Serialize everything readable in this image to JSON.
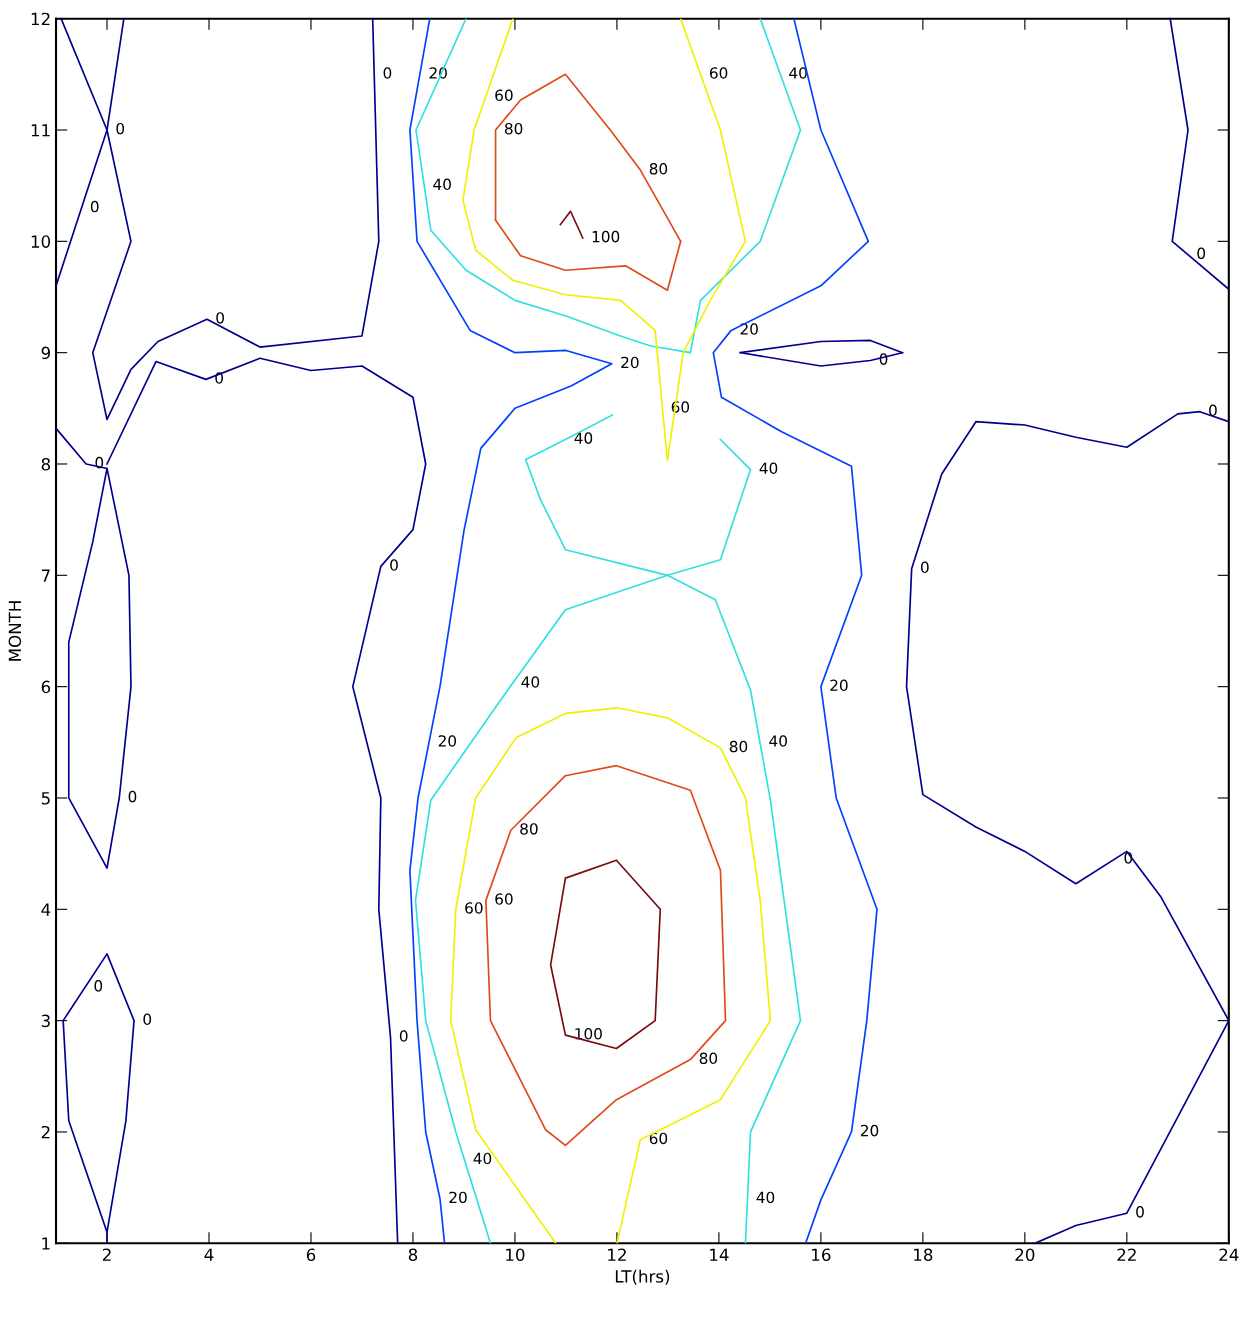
{
  "chart_data": {
    "type": "line",
    "xlabel": "LT(hrs)",
    "ylabel": "MONTH",
    "xlim": [
      1,
      24
    ],
    "ylim": [
      1,
      12
    ],
    "xticks": [
      2,
      4,
      6,
      8,
      10,
      12,
      14,
      16,
      18,
      20,
      22,
      24
    ],
    "yticks": [
      1,
      2,
      3,
      4,
      5,
      6,
      7,
      8,
      9,
      10,
      11,
      12
    ],
    "grid": false,
    "legend": false,
    "line_style": "solid",
    "series": [
      {
        "color": "#00008f",
        "x": [
          2.33,
          2,
          1
        ],
        "values": [
          12,
          11,
          9.6
        ]
      },
      {
        "color": "#00008f",
        "x": [
          1.1,
          2,
          2.47,
          1.72,
          2,
          2.47,
          3,
          3.96,
          5,
          7,
          7.33,
          7.21
        ],
        "values": [
          12,
          11,
          10,
          9,
          8.4,
          8.85,
          9.1,
          9.3,
          9.05,
          9.15,
          10,
          12
        ]
      },
      {
        "color": "#00008f",
        "x": [
          2,
          2.96,
          3.94,
          5,
          6,
          7,
          8,
          8.25,
          8,
          7.37,
          6.82,
          7.37,
          7.33,
          7.56,
          7.7
        ],
        "values": [
          8,
          8.92,
          8.76,
          8.95,
          8.84,
          8.88,
          8.6,
          8,
          7.41,
          7.08,
          6,
          5,
          4,
          2.85,
          1
        ]
      },
      {
        "color": "#00008f",
        "x": [
          1,
          1.59,
          2,
          2.43,
          2.47,
          2.24,
          2,
          1.25,
          1.25,
          1.72,
          2
        ],
        "values": [
          8.32,
          8,
          7.96,
          7,
          6,
          5,
          4.37,
          5,
          6.4,
          7.3,
          7.96
        ]
      },
      {
        "color": "#00008f",
        "x": [
          2,
          1.25,
          1.14,
          2,
          2.53,
          2.37,
          2,
          2
        ],
        "values": [
          1.1,
          2.1,
          3,
          3.6,
          3,
          2.1,
          1.1,
          1
        ]
      },
      {
        "color": "#00008f",
        "x": [
          22.85,
          23.2,
          22.89,
          24
        ],
        "values": [
          12,
          11,
          10,
          9.57
        ]
      },
      {
        "color": "#00008f",
        "x": [
          24,
          23.43,
          23,
          22,
          21,
          20,
          19.04,
          18.37,
          17.78,
          17.68,
          18,
          19.04,
          20,
          21,
          22,
          22.67,
          24
        ],
        "values": [
          8.38,
          8.47,
          8.45,
          8.15,
          8.24,
          8.35,
          8.38,
          7.91,
          7.06,
          6,
          5.03,
          4.74,
          4.52,
          4.23,
          4.52,
          4.11,
          3
        ]
      },
      {
        "color": "#00008f",
        "x": [
          24,
          22,
          21,
          20.2
        ],
        "values": [
          3,
          1.27,
          1.16,
          1
        ]
      },
      {
        "color": "#00008f",
        "x": [
          14.42,
          16,
          16.97,
          17.6
        ],
        "values": [
          9,
          9.1,
          9.11,
          9
        ]
      },
      {
        "color": "#00008f",
        "x": [
          14.42,
          16,
          16.97,
          17.6
        ],
        "values": [
          9,
          8.88,
          8.93,
          9
        ]
      },
      {
        "color": "#0040ff",
        "x": [
          8.33,
          7.94,
          8.08,
          9.12,
          10,
          11,
          11.9,
          11.1,
          10,
          9.33,
          9,
          8.53,
          8.1,
          7.94,
          8.08,
          8.25,
          8.53,
          8.62
        ],
        "values": [
          12,
          11,
          10,
          9.2,
          9,
          9.02,
          8.9,
          8.7,
          8.5,
          8.14,
          7.4,
          6,
          5,
          4.35,
          3,
          2,
          1.4,
          1
        ]
      },
      {
        "color": "#0040ff",
        "x": [
          15.47,
          16,
          16.93,
          16,
          14.24,
          13.89,
          14.05,
          15.23,
          16.6,
          16.8,
          16,
          16.3,
          17.1,
          16.9,
          16.6,
          16,
          15.7
        ],
        "values": [
          12,
          11,
          10,
          9.6,
          9.2,
          9,
          8.6,
          8.29,
          7.98,
          7,
          6,
          5,
          4,
          3,
          2,
          1.39,
          1
        ]
      },
      {
        "color": "#30e0e0",
        "x": [
          9.04,
          8.06,
          8.35,
          9.04,
          10,
          11,
          12.07,
          12.66,
          13.44,
          13.64,
          14.81,
          15.6,
          14.81
        ],
        "values": [
          12,
          11,
          10.1,
          9.74,
          9.47,
          9.33,
          9.15,
          9.06,
          9,
          9.47,
          10,
          11,
          12
        ]
      },
      {
        "color": "#30e0e0",
        "x": [
          11.91,
          10.99,
          10.21,
          10.5,
          10.99,
          12.99,
          13.93,
          14.62,
          15.01,
          15.6,
          14.62,
          14.52
        ],
        "values": [
          8.44,
          8.22,
          8.04,
          7.68,
          7.23,
          7,
          6.78,
          5.97,
          4.98,
          3,
          2,
          1
        ]
      },
      {
        "color": "#30e0e0",
        "x": [
          14.03,
          14.62,
          14.03,
          12.99,
          10.99,
          9.72,
          8.35,
          8.05,
          8.25,
          8.84,
          9.52
        ],
        "values": [
          8.22,
          7.95,
          7.14,
          7,
          6.69,
          5.88,
          4.98,
          4.08,
          3,
          2,
          1
        ]
      },
      {
        "color": "#f0f000",
        "x": [
          9.96,
          9.2,
          8.98,
          9.23,
          9.96,
          10.99,
          12.07,
          12.75,
          12.99,
          13.3,
          13.83,
          14.52,
          14.03,
          13.25
        ],
        "values": [
          12,
          11,
          10.37,
          9.92,
          9.65,
          9.52,
          9.47,
          9.2,
          8.03,
          9,
          9.47,
          10,
          11,
          12
        ]
      },
      {
        "color": "#f0f000",
        "x": [
          10.8,
          9.23,
          8.74,
          8.84,
          9.23,
          10.02,
          11,
          12,
          12.99,
          14.03,
          14.52,
          14.81,
          15.01,
          14.03,
          12.46,
          12
        ],
        "values": [
          1,
          2.02,
          3,
          4,
          5,
          5.54,
          5.76,
          5.81,
          5.72,
          5.45,
          5,
          4.08,
          3,
          2.29,
          1.93,
          1
        ]
      },
      {
        "color": "#e04a1a",
        "x": [
          9.62,
          9.62,
          10.11,
          10.99,
          11.87,
          12.46,
          13.25
        ],
        "values": [
          10.19,
          11,
          11.27,
          11.5,
          11,
          10.64,
          10
        ]
      },
      {
        "color": "#e04a1a",
        "x": [
          9.62,
          10.11,
          10.99,
          12.17,
          12.99,
          13.25
        ],
        "values": [
          10.19,
          9.87,
          9.74,
          9.78,
          9.56,
          10
        ]
      },
      {
        "color": "#e04a1a",
        "x": [
          10.99,
          10.6,
          9.52,
          9.43,
          9.92,
          10.99,
          11.99,
          13.44,
          14.03,
          14.13,
          13.44,
          11.99,
          10.99,
          10.6
        ],
        "values": [
          1.88,
          2.02,
          3,
          4.08,
          4.71,
          5.2,
          5.29,
          5.07,
          4.35,
          3,
          2.65,
          2.29,
          1.88,
          2.02
        ]
      },
      {
        "color": "#7a0a10",
        "x": [
          10.89,
          11.09,
          11.33
        ],
        "values": [
          10.15,
          10.27,
          10.03
        ]
      },
      {
        "color": "#7a0a10",
        "x": [
          10.99,
          11.99,
          12.85,
          12.75,
          11.99,
          10.99,
          10.7,
          10.99,
          11.99
        ],
        "values": [
          4.28,
          4.44,
          4,
          3,
          2.75,
          2.87,
          3.5,
          4.28,
          4.44
        ]
      }
    ],
    "annotations": [
      {
        "text": "0",
        "x": 2,
        "y": 11
      },
      {
        "text": "0",
        "x": 1.5,
        "y": 10.3
      },
      {
        "text": "0",
        "x": 3.96,
        "y": 9.3
      },
      {
        "text": "0",
        "x": 7.24,
        "y": 11.5
      },
      {
        "text": "0",
        "x": 3.94,
        "y": 8.76
      },
      {
        "text": "0",
        "x": 7.37,
        "y": 7.08
      },
      {
        "text": "0",
        "x": 7.56,
        "y": 2.85
      },
      {
        "text": "0",
        "x": 1.59,
        "y": 8
      },
      {
        "text": "0",
        "x": 2.24,
        "y": 5
      },
      {
        "text": "0",
        "x": 1.57,
        "y": 3.3
      },
      {
        "text": "0",
        "x": 2.53,
        "y": 3
      },
      {
        "text": "0",
        "x": 23.2,
        "y": 9.88
      },
      {
        "text": "0",
        "x": 23.43,
        "y": 8.47
      },
      {
        "text": "0",
        "x": 17.78,
        "y": 7.06
      },
      {
        "text": "0",
        "x": 21.77,
        "y": 4.45
      },
      {
        "text": "0",
        "x": 22,
        "y": 1.27
      },
      {
        "text": "0",
        "x": 16.97,
        "y": 8.93
      },
      {
        "text": "20",
        "x": 8.14,
        "y": 11.5
      },
      {
        "text": "20",
        "x": 11.9,
        "y": 8.9
      },
      {
        "text": "20",
        "x": 8.32,
        "y": 5.5
      },
      {
        "text": "20",
        "x": 8.53,
        "y": 1.4
      },
      {
        "text": "20",
        "x": 16,
        "y": 6
      },
      {
        "text": "20",
        "x": 16.6,
        "y": 2
      },
      {
        "text": "20",
        "x": 14.24,
        "y": 9.2
      },
      {
        "text": "40",
        "x": 8.22,
        "y": 10.5
      },
      {
        "text": "40",
        "x": 15.2,
        "y": 11.5
      },
      {
        "text": "40",
        "x": 10.99,
        "y": 8.22
      },
      {
        "text": "40",
        "x": 9.95,
        "y": 6.03
      },
      {
        "text": "40",
        "x": 14.81,
        "y": 5.5
      },
      {
        "text": "40",
        "x": 9.01,
        "y": 1.75
      },
      {
        "text": "40",
        "x": 14.56,
        "y": 1.4
      },
      {
        "text": "40",
        "x": 14.62,
        "y": 7.95
      },
      {
        "text": "60",
        "x": 9.43,
        "y": 11.3
      },
      {
        "text": "60",
        "x": 13.64,
        "y": 11.5
      },
      {
        "text": "60",
        "x": 12.89,
        "y": 8.5
      },
      {
        "text": "60",
        "x": 8.84,
        "y": 4
      },
      {
        "text": "60",
        "x": 12.46,
        "y": 1.93
      },
      {
        "text": "60",
        "x": 9.43,
        "y": 4.08
      },
      {
        "text": "80",
        "x": 9.62,
        "y": 11
      },
      {
        "text": "80",
        "x": 12.46,
        "y": 10.64
      },
      {
        "text": "80",
        "x": 9.92,
        "y": 4.71
      },
      {
        "text": "80",
        "x": 13.44,
        "y": 2.65
      },
      {
        "text": "80",
        "x": 14.03,
        "y": 5.45
      },
      {
        "text": "100",
        "x": 11.33,
        "y": 10.03
      },
      {
        "text": "100",
        "x": 10.99,
        "y": 2.87
      }
    ]
  }
}
